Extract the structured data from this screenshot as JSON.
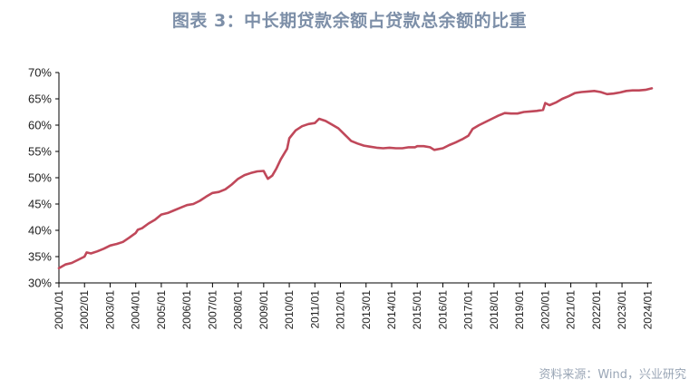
{
  "chart_data": {
    "type": "line",
    "title": "图表 3：中长期贷款余额占贷款总余额的比重",
    "source": "资料来源：Wind，兴业研究",
    "xlabel": "",
    "ylabel": "",
    "ylim": [
      30,
      70
    ],
    "y_ticks": [
      30,
      35,
      40,
      45,
      50,
      55,
      60,
      65,
      70
    ],
    "y_tick_format": "%",
    "x_ticks": [
      "2001/01",
      "2002/01",
      "2003/01",
      "2004/01",
      "2005/01",
      "2006/01",
      "2007/01",
      "2008/01",
      "2009/01",
      "2010/01",
      "2011/01",
      "2012/01",
      "2013/01",
      "2014/01",
      "2015/01",
      "2016/01",
      "2017/01",
      "2018/01",
      "2019/01",
      "2020/01",
      "2021/01",
      "2022/01",
      "2023/01",
      "2024/01"
    ],
    "grid": false,
    "line_color": "#c0485a",
    "series": [
      {
        "name": "",
        "points": [
          [
            "2001/01",
            32.8
          ],
          [
            "2001/04",
            33.5
          ],
          [
            "2001/07",
            33.8
          ],
          [
            "2001/10",
            34.4
          ],
          [
            "2002/01",
            35.0
          ],
          [
            "2002/02",
            35.8
          ],
          [
            "2002/04",
            35.6
          ],
          [
            "2002/07",
            36.0
          ],
          [
            "2002/10",
            36.5
          ],
          [
            "2003/01",
            37.1
          ],
          [
            "2003/04",
            37.4
          ],
          [
            "2003/07",
            37.8
          ],
          [
            "2003/10",
            38.6
          ],
          [
            "2004/01",
            39.5
          ],
          [
            "2004/02",
            40.1
          ],
          [
            "2004/04",
            40.4
          ],
          [
            "2004/07",
            41.3
          ],
          [
            "2004/10",
            42.0
          ],
          [
            "2005/01",
            43.0
          ],
          [
            "2005/04",
            43.3
          ],
          [
            "2005/07",
            43.8
          ],
          [
            "2005/10",
            44.3
          ],
          [
            "2006/01",
            44.8
          ],
          [
            "2006/04",
            45.0
          ],
          [
            "2006/07",
            45.6
          ],
          [
            "2006/10",
            46.4
          ],
          [
            "2007/01",
            47.1
          ],
          [
            "2007/04",
            47.3
          ],
          [
            "2007/07",
            47.8
          ],
          [
            "2007/10",
            48.7
          ],
          [
            "2008/01",
            49.8
          ],
          [
            "2008/04",
            50.5
          ],
          [
            "2008/07",
            50.9
          ],
          [
            "2008/10",
            51.2
          ],
          [
            "2009/01",
            51.3
          ],
          [
            "2009/02",
            50.5
          ],
          [
            "2009/03",
            49.8
          ],
          [
            "2009/05",
            50.4
          ],
          [
            "2009/07",
            51.8
          ],
          [
            "2009/09",
            53.5
          ],
          [
            "2009/12",
            55.5
          ],
          [
            "2010/01",
            57.5
          ],
          [
            "2010/04",
            59.0
          ],
          [
            "2010/07",
            59.8
          ],
          [
            "2010/10",
            60.2
          ],
          [
            "2011/01",
            60.4
          ],
          [
            "2011/03",
            61.2
          ],
          [
            "2011/06",
            60.8
          ],
          [
            "2011/09",
            60.1
          ],
          [
            "2011/12",
            59.4
          ],
          [
            "2012/03",
            58.2
          ],
          [
            "2012/06",
            57.0
          ],
          [
            "2012/09",
            56.5
          ],
          [
            "2012/12",
            56.1
          ],
          [
            "2013/03",
            55.9
          ],
          [
            "2013/06",
            55.7
          ],
          [
            "2013/09",
            55.6
          ],
          [
            "2013/12",
            55.7
          ],
          [
            "2014/03",
            55.6
          ],
          [
            "2014/06",
            55.6
          ],
          [
            "2014/09",
            55.8
          ],
          [
            "2014/12",
            55.8
          ],
          [
            "2015/01",
            56.0
          ],
          [
            "2015/04",
            56.0
          ],
          [
            "2015/07",
            55.8
          ],
          [
            "2015/09",
            55.3
          ],
          [
            "2016/01",
            55.6
          ],
          [
            "2016/04",
            56.2
          ],
          [
            "2016/07",
            56.7
          ],
          [
            "2016/10",
            57.3
          ],
          [
            "2017/01",
            58.0
          ],
          [
            "2017/03",
            59.3
          ],
          [
            "2017/06",
            60.0
          ],
          [
            "2017/09",
            60.6
          ],
          [
            "2017/12",
            61.2
          ],
          [
            "2018/03",
            61.8
          ],
          [
            "2018/06",
            62.3
          ],
          [
            "2018/09",
            62.2
          ],
          [
            "2018/12",
            62.2
          ],
          [
            "2019/03",
            62.5
          ],
          [
            "2019/06",
            62.6
          ],
          [
            "2019/09",
            62.7
          ],
          [
            "2019/12",
            62.9
          ],
          [
            "2020/01",
            64.2
          ],
          [
            "2020/03",
            63.8
          ],
          [
            "2020/06",
            64.3
          ],
          [
            "2020/09",
            65.0
          ],
          [
            "2020/12",
            65.5
          ],
          [
            "2021/03",
            66.1
          ],
          [
            "2021/06",
            66.3
          ],
          [
            "2021/09",
            66.4
          ],
          [
            "2021/12",
            66.5
          ],
          [
            "2022/03",
            66.3
          ],
          [
            "2022/06",
            65.9
          ],
          [
            "2022/09",
            66.0
          ],
          [
            "2022/12",
            66.2
          ],
          [
            "2023/03",
            66.5
          ],
          [
            "2023/06",
            66.6
          ],
          [
            "2023/09",
            66.6
          ],
          [
            "2023/12",
            66.7
          ],
          [
            "2024/03",
            67.0
          ]
        ]
      }
    ]
  }
}
